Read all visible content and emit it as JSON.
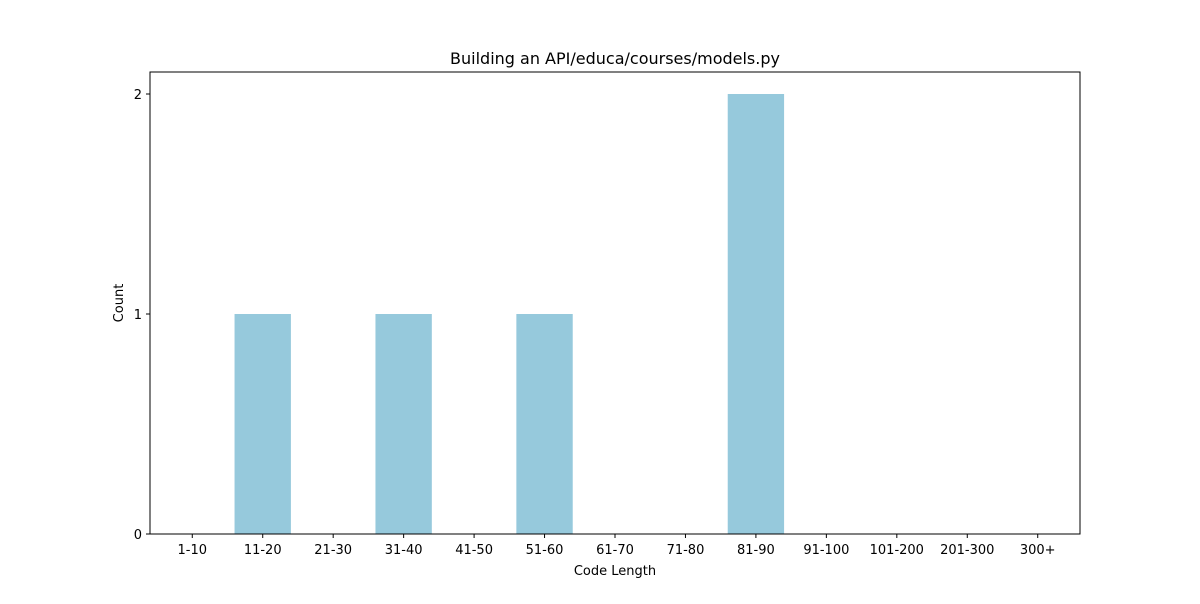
{
  "chart_data": {
    "type": "bar",
    "title": "Building an API/educa/courses/models.py",
    "xlabel": "Code Length",
    "ylabel": "Count",
    "categories": [
      "1-10",
      "11-20",
      "21-30",
      "31-40",
      "41-50",
      "51-60",
      "61-70",
      "71-80",
      "81-90",
      "91-100",
      "101-200",
      "201-300",
      "300+"
    ],
    "values": [
      0,
      1,
      0,
      1,
      0,
      1,
      0,
      0,
      2,
      0,
      0,
      0,
      0
    ],
    "yticks": [
      "0",
      "1",
      "2"
    ],
    "ylim": [
      0,
      2.1
    ],
    "grid": false,
    "legend": false,
    "bar_color": "#96c9dc"
  }
}
